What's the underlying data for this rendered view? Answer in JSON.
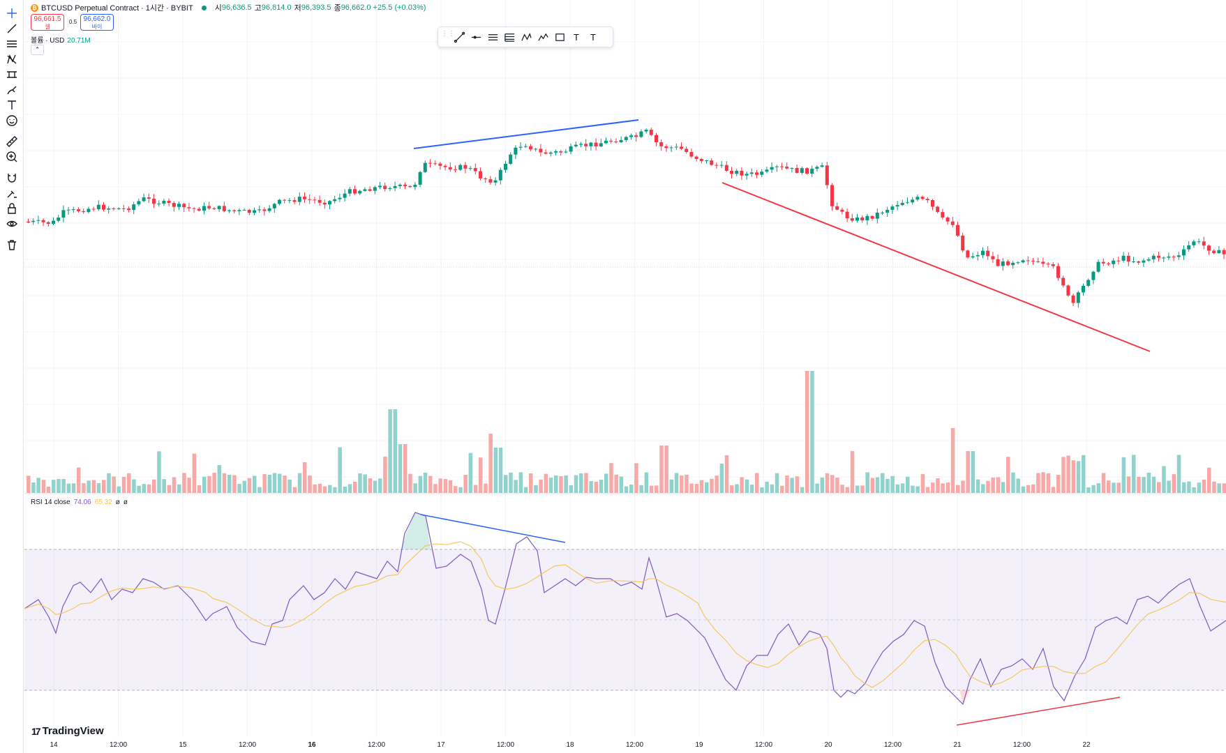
{
  "header": {
    "symbol": "BTCUSD Perpetual Contract · 1시간 · BYBIT",
    "ohlc": [
      {
        "label": "시",
        "value": "96,636.5"
      },
      {
        "label": "고",
        "value": "96,814.0"
      },
      {
        "label": "저",
        "value": "96,393.5"
      },
      {
        "label": "종",
        "value": "96,662.0 +25.5 (+0.03%)"
      }
    ],
    "sell_price": "96,661.5",
    "sell_label": "셀",
    "spread": "0.5",
    "buy_price": "96,662.0",
    "buy_label": "바이",
    "volume_label": "볼륨 · USD",
    "volume_value": "20.71M",
    "collapse_glyph": "⌃"
  },
  "rsi_legend": {
    "name": "RSI 14 close",
    "value": "74.06",
    "ma_value": "65.32",
    "extra1": "ø",
    "extra2": "ø"
  },
  "branding": {
    "logo_text": "TradingView",
    "logo_mark": "17"
  },
  "left_toolbar": [
    "crosshair-icon",
    "trendline-icon",
    "horizontal-lines-icon",
    "pattern-icon",
    "measure-icon",
    "brush-icon",
    "text-icon",
    "emoji-icon",
    "ruler-icon",
    "zoom-in-icon",
    "magnet-icon",
    "lock-drawing-icon",
    "lock-icon",
    "eye-icon",
    "trash-icon"
  ],
  "floating_toolbar": [
    "trendline-icon",
    "horizontal-ray-icon",
    "parallel-channel-icon",
    "fib-icon",
    "xabcd-icon",
    "elliott-icon",
    "rectangle-icon",
    "text-icon",
    "text-note-icon"
  ],
  "floating_toolbar_glyphs": {
    "fib": "1 5",
    "elliott": "A C",
    "text": "T",
    "text_note": "T"
  },
  "x_axis": [
    {
      "label": "14",
      "bold": false
    },
    {
      "label": "12:00",
      "bold": false
    },
    {
      "label": "15",
      "bold": false
    },
    {
      "label": "12:00",
      "bold": false
    },
    {
      "label": "16",
      "bold": true
    },
    {
      "label": "12:00",
      "bold": false
    },
    {
      "label": "17",
      "bold": false
    },
    {
      "label": "12:00",
      "bold": false
    },
    {
      "label": "18",
      "bold": false
    },
    {
      "label": "12:00",
      "bold": false
    },
    {
      "label": "19",
      "bold": false
    },
    {
      "label": "12:00",
      "bold": false
    },
    {
      "label": "20",
      "bold": false
    },
    {
      "label": "12:00",
      "bold": false
    },
    {
      "label": "21",
      "bold": false
    },
    {
      "label": "12:00",
      "bold": false
    },
    {
      "label": "22",
      "bold": false
    }
  ],
  "colors": {
    "up": "#089981",
    "down": "#f23645",
    "vol_up": "#92d2cc",
    "vol_down": "#f7a9a7",
    "rsi": "#7e57c2",
    "rsi_ma": "#f7c352",
    "band": "#7e57c2",
    "blue_line": "#2962ff",
    "red_line": "#f23645"
  }
}
